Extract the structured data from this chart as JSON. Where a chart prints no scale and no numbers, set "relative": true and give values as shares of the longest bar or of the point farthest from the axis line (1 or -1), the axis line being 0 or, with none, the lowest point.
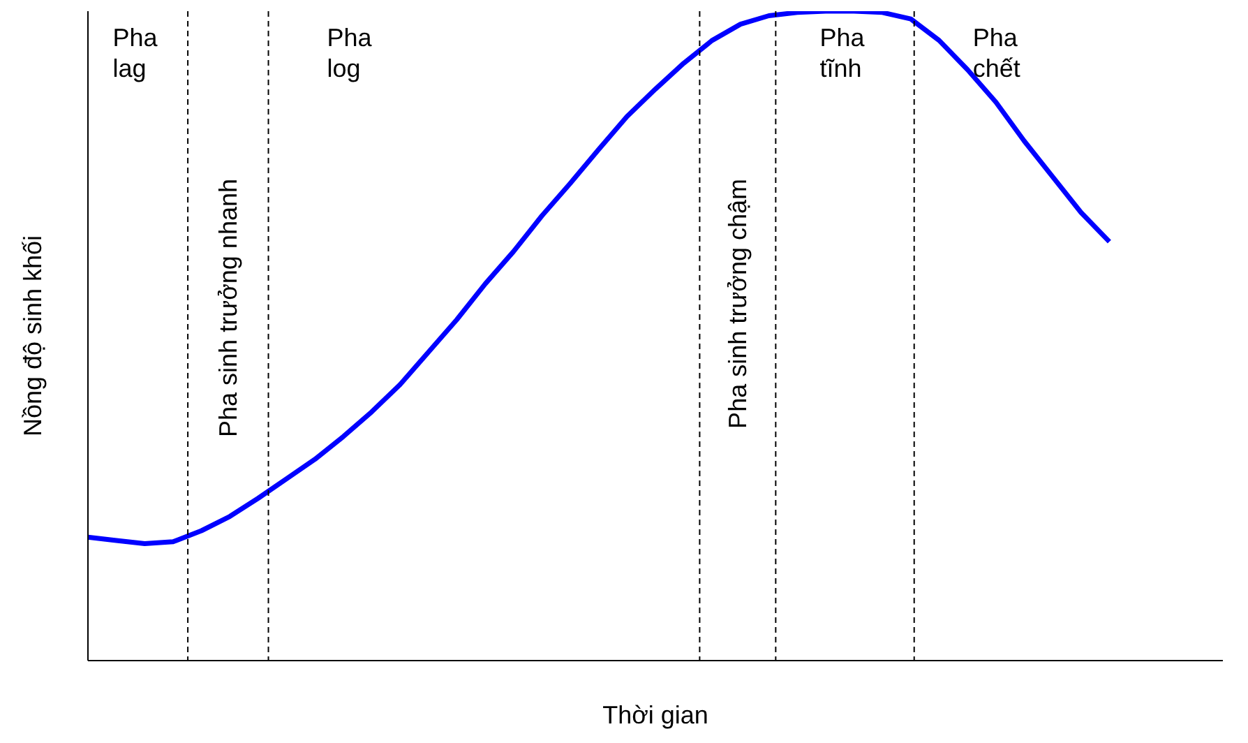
{
  "chart_data": {
    "type": "line",
    "relative": true,
    "xlabel": "Thời gian",
    "ylabel": "Nồng độ sinh khối",
    "marker": "none",
    "line_style": "solid",
    "grid": false,
    "legend": false,
    "categories": [
      null,
      null,
      null,
      null,
      null,
      null,
      null,
      null,
      null,
      null,
      null,
      null,
      null,
      null,
      null,
      null,
      null,
      null,
      null,
      null,
      null,
      null,
      null,
      null,
      null,
      null,
      null,
      null,
      null,
      null,
      null,
      null,
      null,
      null,
      null,
      null,
      null,
      null,
      null,
      null,
      null
    ],
    "series": [
      {
        "color": "#0000ff",
        "values": [
          0.19,
          0.185,
          0.18,
          0.183,
          0.2,
          0.222,
          0.25,
          0.28,
          0.31,
          0.345,
          0.383,
          0.425,
          0.475,
          0.525,
          0.58,
          0.63,
          0.685,
          0.735,
          0.787,
          0.838,
          0.88,
          0.92,
          0.955,
          0.98,
          0.993,
          0.998,
          1,
          1,
          0.998,
          0.988,
          0.955,
          0.91,
          0.86,
          0.8,
          0.745,
          0.69,
          0.645,
          null,
          null,
          null,
          null
        ]
      }
    ],
    "annotations": [
      "Pha lag",
      "Pha sinh trưởng nhanh",
      "Pha log",
      "Pha sinh trưởng chậm",
      "Pha tĩnh",
      "Pha chết"
    ]
  }
}
